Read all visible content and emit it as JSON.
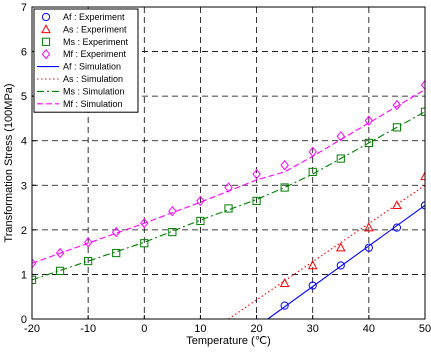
{
  "chart_data": {
    "type": "line",
    "xlabel": "Temperature (℃)",
    "ylabel": "Transformation Stress (100MPa)",
    "xlim": [
      -20,
      50
    ],
    "ylim": [
      0,
      7
    ],
    "x_ticks": [
      "-20",
      "-10",
      "0",
      "10",
      "20",
      "30",
      "40",
      "50"
    ],
    "y_ticks": [
      "0",
      "1",
      "2",
      "3",
      "4",
      "5",
      "6",
      "7"
    ],
    "grid": true,
    "grid_style": "dashed",
    "legend_position": "top-left",
    "series": [
      {
        "name": "Af : Experiment",
        "kind": "scatter",
        "marker": "circle",
        "color": "#0000ff",
        "x": [
          25,
          30,
          35,
          40,
          45,
          50
        ],
        "y": [
          0.3,
          0.75,
          1.2,
          1.6,
          2.05,
          2.55
        ]
      },
      {
        "name": "As : Experiment",
        "kind": "scatter",
        "marker": "triangle",
        "color": "#ff0000",
        "x": [
          25,
          30,
          35,
          40,
          45,
          50
        ],
        "y": [
          0.8,
          1.2,
          1.6,
          2.05,
          2.55,
          3.2
        ]
      },
      {
        "name": "Ms : Experiment",
        "kind": "scatter",
        "marker": "square",
        "color": "#008000",
        "x": [
          -20,
          -15,
          -10,
          -5,
          0,
          5,
          10,
          15,
          20,
          25,
          30,
          35,
          40,
          45,
          50
        ],
        "y": [
          0.88,
          1.08,
          1.3,
          1.48,
          1.7,
          1.95,
          2.2,
          2.48,
          2.65,
          2.95,
          3.3,
          3.6,
          3.95,
          4.3,
          4.65
        ]
      },
      {
        "name": "Mf : Experiment",
        "kind": "scatter",
        "marker": "diamond",
        "color": "#ff00ff",
        "x": [
          -20,
          -15,
          -10,
          -5,
          0,
          5,
          10,
          15,
          20,
          25,
          30,
          35,
          40,
          45,
          50
        ],
        "y": [
          1.25,
          1.48,
          1.72,
          1.95,
          2.15,
          2.42,
          2.65,
          2.95,
          3.25,
          3.45,
          3.75,
          4.1,
          4.45,
          4.8,
          5.25
        ]
      },
      {
        "name": "Af : Simulation",
        "kind": "line",
        "dash": "solid",
        "color": "#0000ff",
        "x": [
          22,
          50
        ],
        "y": [
          0,
          2.55
        ]
      },
      {
        "name": "As : Simulation",
        "kind": "line",
        "dash": "dotted",
        "color": "#ff0000",
        "x": [
          15,
          50
        ],
        "y": [
          0,
          3.0
        ]
      },
      {
        "name": "Ms : Simulation",
        "kind": "line",
        "dash": "dashdot",
        "color": "#008000",
        "x": [
          -20,
          -10,
          0,
          10,
          20,
          25,
          30,
          40,
          50
        ],
        "y": [
          0.88,
          1.3,
          1.72,
          2.22,
          2.68,
          2.95,
          3.25,
          3.95,
          4.65
        ]
      },
      {
        "name": "Mf : Simulation",
        "kind": "line",
        "dash": "dashed",
        "color": "#ff00ff",
        "x": [
          -20,
          -10,
          0,
          10,
          20,
          25,
          30,
          40,
          50
        ],
        "y": [
          1.25,
          1.7,
          2.15,
          2.62,
          3.12,
          3.3,
          3.65,
          4.4,
          5.15
        ]
      }
    ]
  }
}
